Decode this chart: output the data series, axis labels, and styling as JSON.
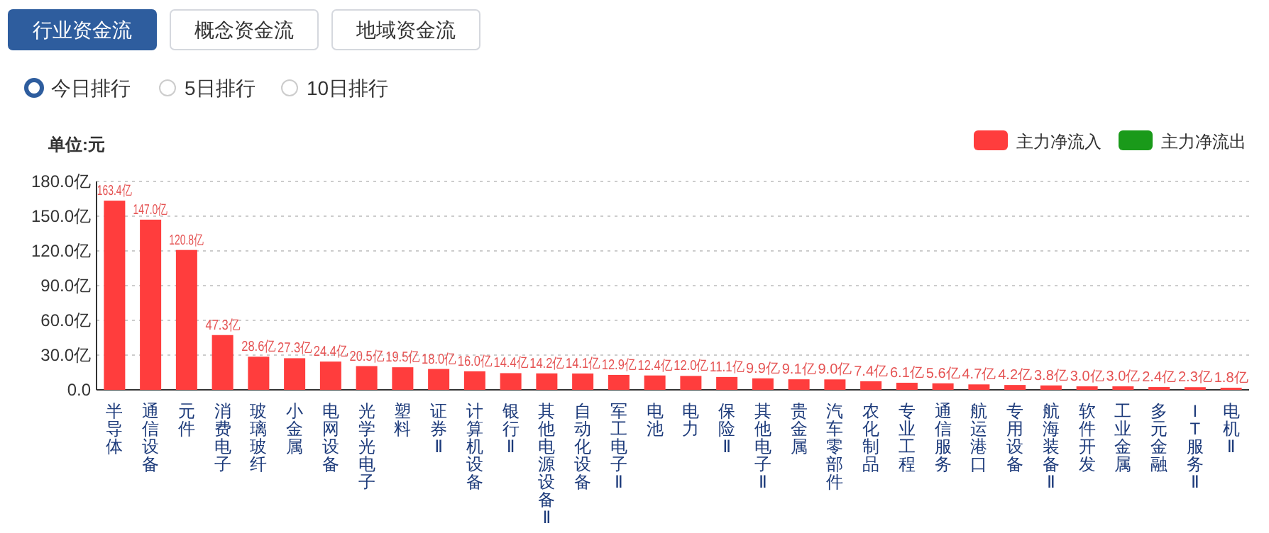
{
  "chart_data": {
    "type": "bar",
    "annotations": [
      "行业资金流",
      "概念资金流",
      "地域资金流",
      "今日排行",
      "5日排行",
      "10日排行"
    ],
    "ylabel": "单位:元",
    "categories": [
      "半导体",
      "通信设备",
      "元件",
      "消费电子",
      "玻璃玻纤",
      "小金属",
      "电网设备",
      "光学光电子",
      "塑料",
      "证券Ⅱ",
      "计算机设备",
      "银行Ⅱ",
      "其他电源设备Ⅱ",
      "自动化设备",
      "军工电子Ⅱ",
      "电池",
      "电力",
      "保险Ⅱ",
      "其他电子Ⅱ",
      "贵金属",
      "汽车零部件",
      "农化制品",
      "专业工程",
      "通信服务",
      "航运港口",
      "专用设备",
      "航海装备Ⅱ",
      "软件开发",
      "工业金属",
      "多元金融",
      "IT服务Ⅱ",
      "电机Ⅱ"
    ],
    "series": [
      {
        "name": "主力净流入",
        "color": "#ff3d3d",
        "values": [
          163.4,
          147.0,
          120.8,
          47.3,
          28.6,
          27.3,
          24.4,
          20.5,
          19.5,
          18.0,
          16.0,
          14.4,
          14.2,
          14.1,
          12.9,
          12.4,
          12.0,
          11.1,
          9.9,
          9.1,
          9.0,
          7.4,
          6.1,
          5.6,
          4.7,
          4.2,
          3.8,
          3.0,
          3.0,
          2.4,
          2.3,
          1.8
        ],
        "value_labels": [
          "163.4亿",
          "147.0亿",
          "120.8亿",
          "47.3亿",
          "28.6亿",
          "27.3亿",
          "24.4亿",
          "20.5亿",
          "19.5亿",
          "18.0亿",
          "16.0亿",
          "14.4亿",
          "14.2亿",
          "14.1亿",
          "12.9亿",
          "12.4亿",
          "12.0亿",
          "11.1亿",
          "9.9亿",
          "9.1亿",
          "9.0亿",
          "7.4亿",
          "6.1亿",
          "5.6亿",
          "4.7亿",
          "4.2亿",
          "3.8亿",
          "3.0亿",
          "3.0亿",
          "2.4亿",
          "2.3亿",
          "1.8亿"
        ]
      },
      {
        "name": "主力净流出",
        "color": "#1a9a1a",
        "values": [
          null,
          null,
          null,
          null,
          null,
          null,
          null,
          null,
          null,
          null,
          null,
          null,
          null,
          null,
          null,
          null,
          null,
          null,
          null,
          null,
          null,
          null,
          null,
          null,
          null,
          null,
          null,
          null,
          null,
          null,
          null,
          null
        ]
      }
    ],
    "ylim": [
      0,
      180
    ],
    "yticks": [
      {
        "value": 0,
        "label": "0.0"
      },
      {
        "value": 30,
        "label": "30.0亿"
      },
      {
        "value": 60,
        "label": "60.0亿"
      },
      {
        "value": 90,
        "label": "90.0亿"
      },
      {
        "value": 120,
        "label": "120.0亿"
      },
      {
        "value": 150,
        "label": "150.0亿"
      },
      {
        "value": 180,
        "label": "180.0亿"
      }
    ],
    "grid": "y",
    "legend": "top right"
  }
}
